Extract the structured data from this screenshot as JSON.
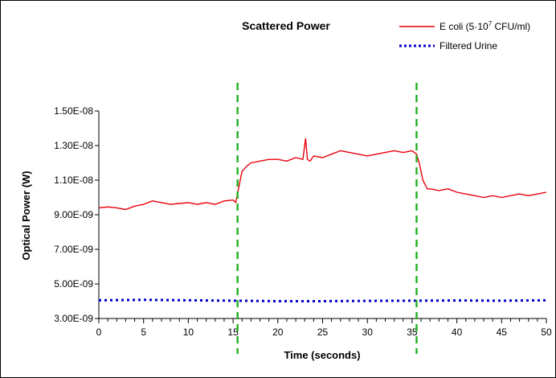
{
  "chart_data": {
    "type": "line",
    "title": "Scattered Power",
    "xlabel": "Time (seconds)",
    "ylabel": "Optical Power (W)",
    "xlim": [
      0,
      50
    ],
    "ylim": [
      3e-09,
      1.5e-08
    ],
    "x_ticks": [
      0,
      5,
      10,
      15,
      20,
      25,
      30,
      35,
      40,
      45,
      50
    ],
    "x_tick_labels": [
      "0",
      "5",
      "10",
      "15",
      "20",
      "25",
      "30",
      "35",
      "40",
      "45",
      "50"
    ],
    "y_ticks": [
      3e-09,
      5e-09,
      7e-09,
      9e-09,
      1.1e-08,
      1.3e-08,
      1.5e-08
    ],
    "y_tick_labels": [
      "3.00E-09",
      "5.00E-09",
      "7.00E-09",
      "9.00E-09",
      "1.10E-08",
      "1.30E-08",
      "1.50E-08"
    ],
    "grid": false,
    "legend_position": "top-right",
    "legend": {
      "ecoli_main": "E coli (5",
      "ecoli_dot": "·",
      "ecoli_base": "10",
      "ecoli_exp": "7",
      "ecoli_rest": " CFU/ml)",
      "urine": "Filtered Urine"
    },
    "series": [
      {
        "name": "E coli (5·10^7 CFU/ml)",
        "color": "#e8000b",
        "style": "solid",
        "x": [
          0,
          1,
          2,
          3,
          4,
          5,
          6,
          7,
          8,
          9,
          10,
          11,
          12,
          13,
          14,
          15,
          15.3,
          15.6,
          16,
          16.5,
          17,
          18,
          19,
          20,
          21,
          22,
          22.8,
          23.1,
          23.3,
          23.6,
          24,
          25,
          26,
          27,
          28,
          29,
          30,
          31,
          32,
          33,
          34,
          35,
          35.5,
          35.8,
          36.2,
          36.7,
          37,
          38,
          39,
          40,
          41,
          42,
          43,
          44,
          45,
          46,
          47,
          48,
          49,
          50
        ],
        "y": [
          9.4e-09,
          9.45e-09,
          9.4e-09,
          9.3e-09,
          9.5e-09,
          9.6e-09,
          9.8e-09,
          9.7e-09,
          9.6e-09,
          9.65e-09,
          9.7e-09,
          9.6e-09,
          9.7e-09,
          9.6e-09,
          9.8e-09,
          9.85e-09,
          9.7e-09,
          1.05e-08,
          1.15e-08,
          1.18e-08,
          1.2e-08,
          1.21e-08,
          1.22e-08,
          1.22e-08,
          1.21e-08,
          1.23e-08,
          1.22e-08,
          1.34e-08,
          1.22e-08,
          1.21e-08,
          1.24e-08,
          1.23e-08,
          1.25e-08,
          1.27e-08,
          1.26e-08,
          1.25e-08,
          1.24e-08,
          1.25e-08,
          1.26e-08,
          1.27e-08,
          1.26e-08,
          1.27e-08,
          1.25e-08,
          1.2e-08,
          1.1e-08,
          1.05e-08,
          1.05e-08,
          1.04e-08,
          1.05e-08,
          1.03e-08,
          1.02e-08,
          1.01e-08,
          1e-08,
          1.01e-08,
          1e-08,
          1.01e-08,
          1.02e-08,
          1.01e-08,
          1.02e-08,
          1.03e-08
        ]
      },
      {
        "name": "Filtered Urine",
        "color": "#0000cc",
        "style": "dotted",
        "x": [
          0,
          5,
          10,
          15,
          20,
          25,
          30,
          35,
          40,
          45,
          50
        ],
        "y": [
          4.05e-09,
          4.08e-09,
          4.05e-09,
          4.03e-09,
          4e-09,
          4e-09,
          4.02e-09,
          4.03e-09,
          4.04e-09,
          4.03e-09,
          4.05e-09
        ]
      }
    ],
    "markers": [
      {
        "x": 15.5,
        "color": "#22b022",
        "style": "dashed"
      },
      {
        "x": 35.5,
        "color": "#22b022",
        "style": "dashed"
      }
    ]
  }
}
